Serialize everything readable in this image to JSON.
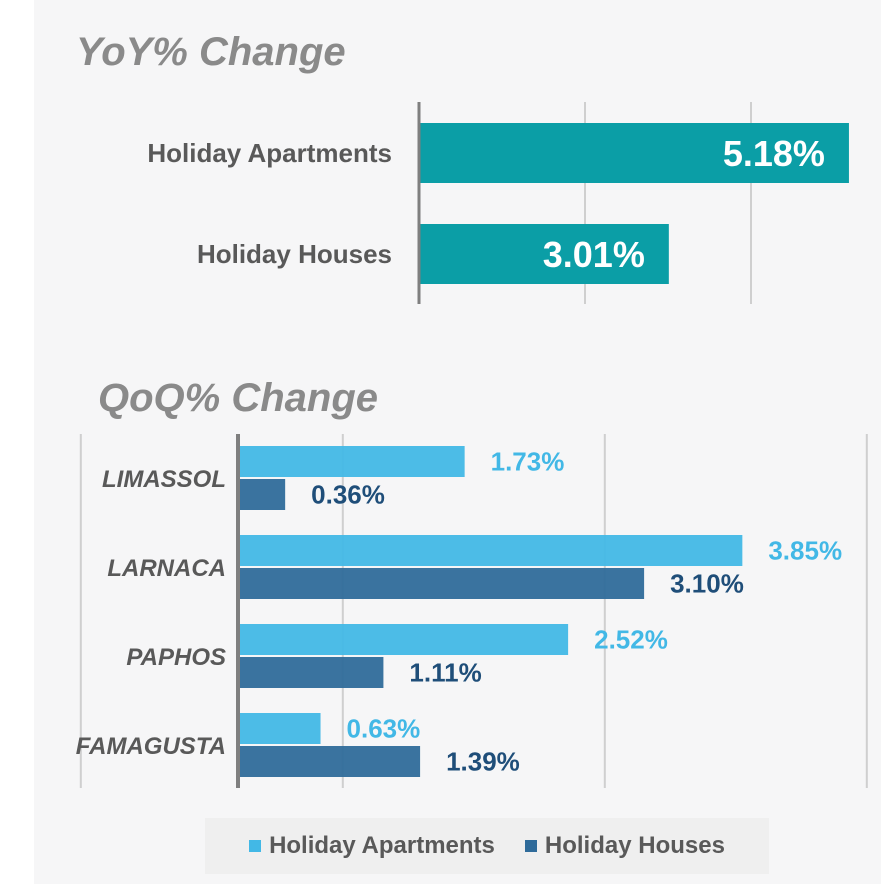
{
  "chart_data": [
    {
      "type": "bar",
      "orientation": "horizontal",
      "title": "YoY% Change",
      "categories": [
        "Holiday Apartments",
        "Holiday Houses"
      ],
      "series": [
        {
          "values": [
            5.18,
            3.01
          ],
          "labels": [
            "5.18%",
            "3.01%"
          ],
          "color": "#0b9ea6"
        }
      ],
      "xlim": [
        0,
        6
      ],
      "grid": true
    },
    {
      "type": "bar",
      "orientation": "horizontal",
      "title": "QoQ% Change",
      "categories": [
        "LIMASSOL",
        "LARNACA",
        "PAPHOS",
        "FAMAGUSTA"
      ],
      "series": [
        {
          "name": "Holiday Apartments",
          "values": [
            1.73,
            3.85,
            2.52,
            0.63
          ],
          "labels": [
            "1.73%",
            "3.85%",
            "2.52%",
            "0.63%"
          ],
          "color": "#42b8e6"
        },
        {
          "name": "Holiday Houses",
          "values": [
            0.36,
            3.1,
            1.11,
            1.39
          ],
          "labels": [
            "0.36%",
            "3.10%",
            "1.11%",
            "1.39%"
          ],
          "color": "#2f6b9a"
        }
      ],
      "xlim": [
        -1.2,
        4.8
      ],
      "grid": true,
      "legend": "bottom"
    }
  ],
  "colors": {
    "yoy_bar": "#0b9ea6",
    "apartments": "#42b8e6",
    "houses": "#2f6b9a",
    "houses_label": "#1f4e79",
    "title": "#8a8a8a",
    "grid": "#cfcfcf",
    "axis": "#7f7f7f"
  }
}
